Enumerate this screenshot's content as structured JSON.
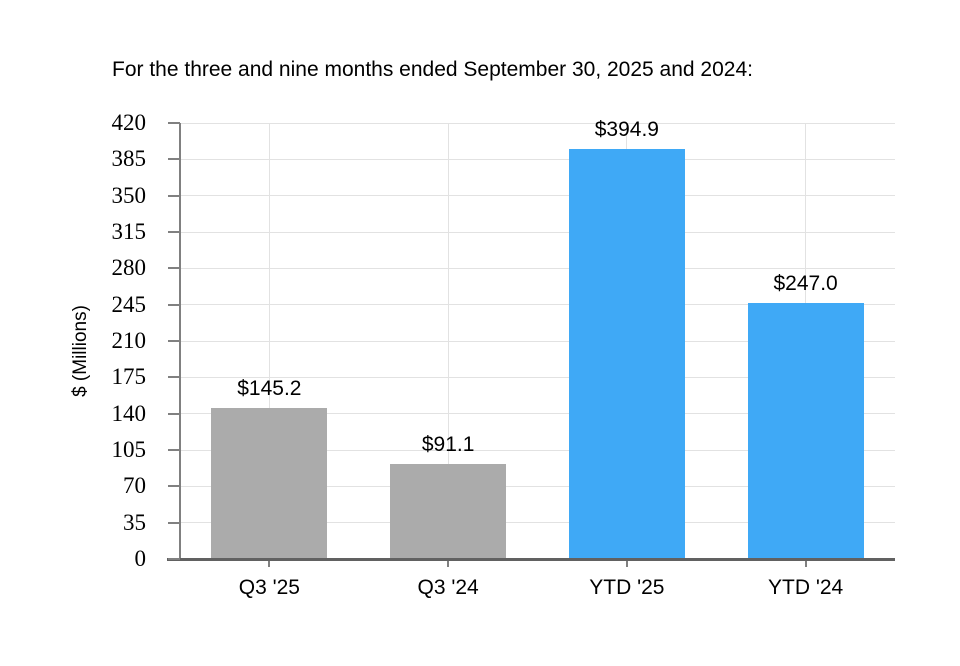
{
  "chart_data": {
    "type": "bar",
    "title": "For the three and nine months ended September 30, 2025 and 2024:",
    "categories": [
      "Q3 '25",
      "Q3 '24",
      "YTD '25",
      "YTD '24"
    ],
    "values": [
      145.2,
      91.1,
      394.9,
      247.0
    ],
    "data_labels": [
      "$145.2",
      "$91.1",
      "$394.9",
      "$247.0"
    ],
    "bar_colors": [
      "#ABABAB",
      "#ABABAB",
      "#3FA9F6",
      "#3FA9F6"
    ],
    "xlabel": "",
    "ylabel": "$ (Millions)",
    "ylim": [
      0,
      420
    ],
    "yticks": [
      0,
      35,
      70,
      105,
      140,
      175,
      210,
      245,
      280,
      315,
      350,
      385,
      420
    ],
    "grid": "horizontal gridlines at every y tick, vertical gridlines at each category center",
    "legend": "none"
  },
  "colors": {
    "bar_gray": "#ABABAB",
    "bar_blue": "#3FA9F6",
    "gridline": "#E2E2E2",
    "y_axis": "#808080",
    "x_axis": "#616161",
    "tick": "#808080",
    "text": "#000000",
    "background": "#FFFFFF"
  }
}
